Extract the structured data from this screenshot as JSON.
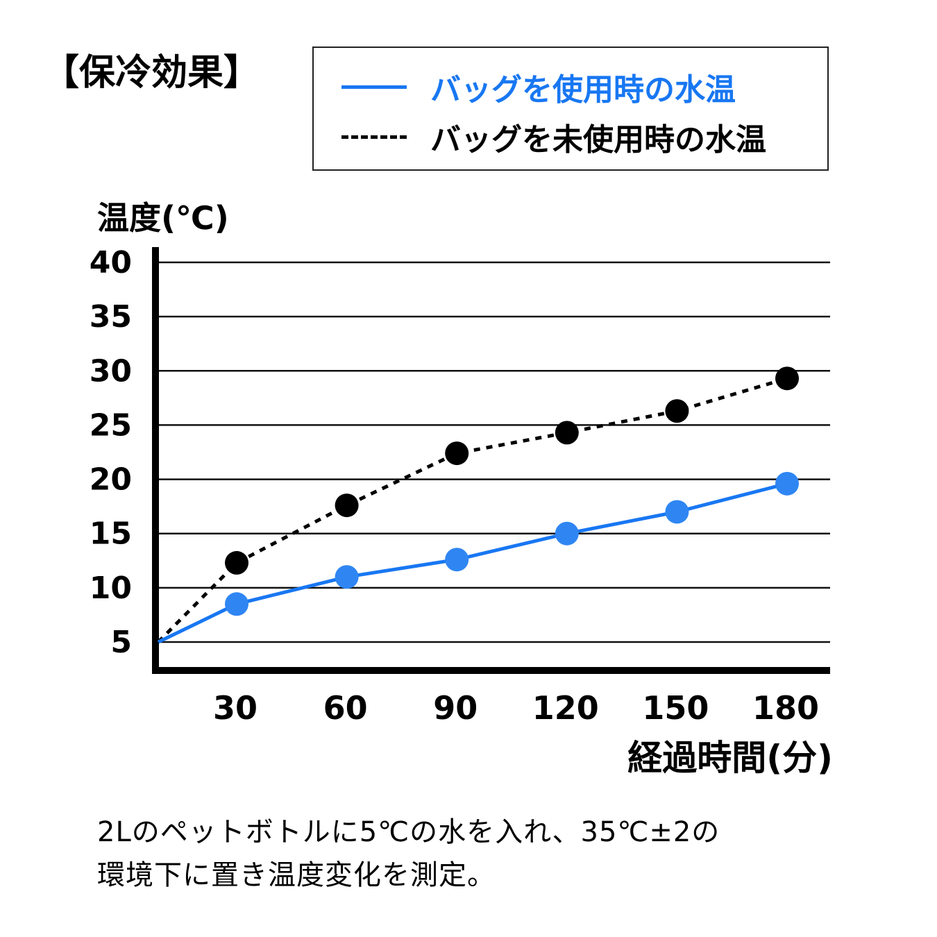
{
  "title": "【保冷効果】",
  "legend": {
    "items": [
      {
        "label": "バッグを使用時の水温",
        "style": "solid",
        "color": "#1877f2"
      },
      {
        "label": "バッグを未使用時の水温",
        "style": "dotted",
        "color": "#000000"
      }
    ]
  },
  "note": {
    "line1": "2Lのペットボトルに5℃の水を入れ、35℃±2の",
    "line2": "環境下に置き温度変化を測定。"
  },
  "chart_data": {
    "type": "line",
    "ylabel": "温度(℃)",
    "xlabel": "経過時間(分)",
    "x": [
      0,
      30,
      60,
      90,
      120,
      150,
      180
    ],
    "x_tick_labels": [
      "30",
      "60",
      "90",
      "120",
      "150",
      "180"
    ],
    "y_tick_labels": [
      "5",
      "10",
      "15",
      "20",
      "25",
      "30",
      "35",
      "40"
    ],
    "ylim": [
      5,
      40
    ],
    "xlim": [
      0,
      180
    ],
    "grid": true,
    "legend_position": "top",
    "series": [
      {
        "name": "バッグを使用時の水温",
        "style": "solid",
        "color": "#1877f2",
        "values": [
          5,
          8.5,
          11,
          12.6,
          15,
          17,
          19.6
        ]
      },
      {
        "name": "バッグを未使用時の水温",
        "style": "dotted",
        "color": "#000000",
        "values": [
          5,
          12.3,
          17.6,
          22.4,
          24.3,
          26.3,
          29.3
        ]
      }
    ]
  }
}
